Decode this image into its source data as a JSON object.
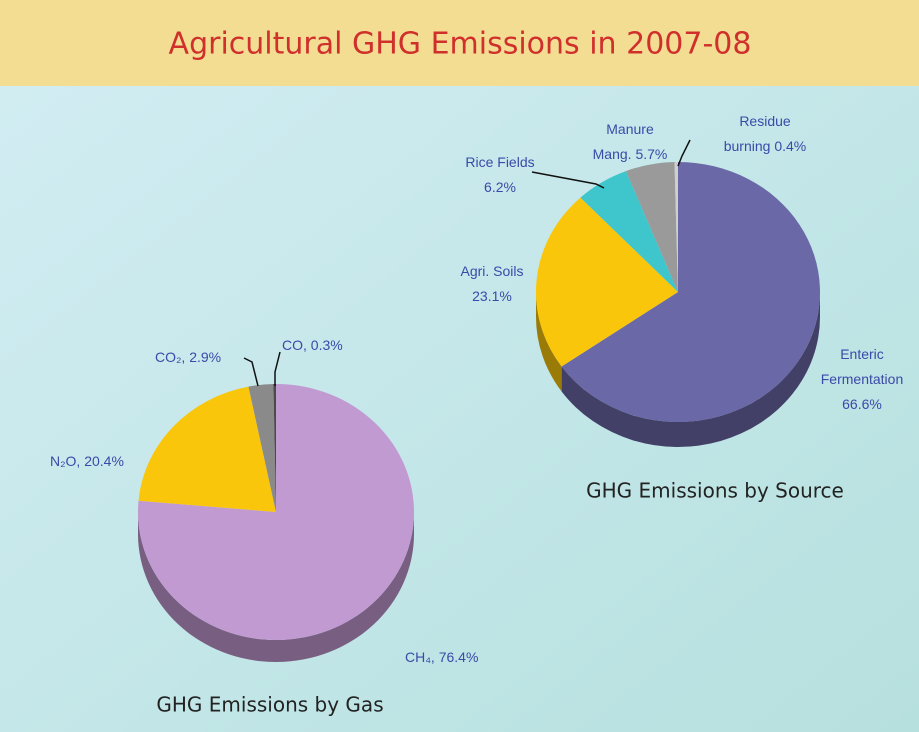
{
  "title": "Agricultural GHG Emissions in 2007-08",
  "chart_data": [
    {
      "type": "pie",
      "title": "GHG Emissions by Gas",
      "values": [
        76.4,
        20.4,
        2.9,
        0.3
      ],
      "value_labels": [
        "CH₄, 76.4%",
        "N₂O, 20.4%",
        "CO₂, 2.9%",
        "CO, 0.3%"
      ],
      "colors": [
        "#c29ad2",
        "#f9c60c",
        "#8a8a8a",
        "#4a4a4a"
      ]
    },
    {
      "type": "pie",
      "title": "GHG Emissions by Source",
      "values": [
        66.6,
        23.1,
        6.2,
        5.7,
        0.4
      ],
      "value_labels": [
        "Enteric\nFermentation\n66.6%",
        "Agri. Soils\n23.1%",
        "Rice Fields\n6.2%",
        "Manure\nMang. 5.7%",
        "Residue\nburning 0.4%"
      ],
      "colors": [
        "#6a68a6",
        "#f9c60c",
        "#3ec6cc",
        "#9a9a9a",
        "#cfcfcf"
      ]
    }
  ]
}
